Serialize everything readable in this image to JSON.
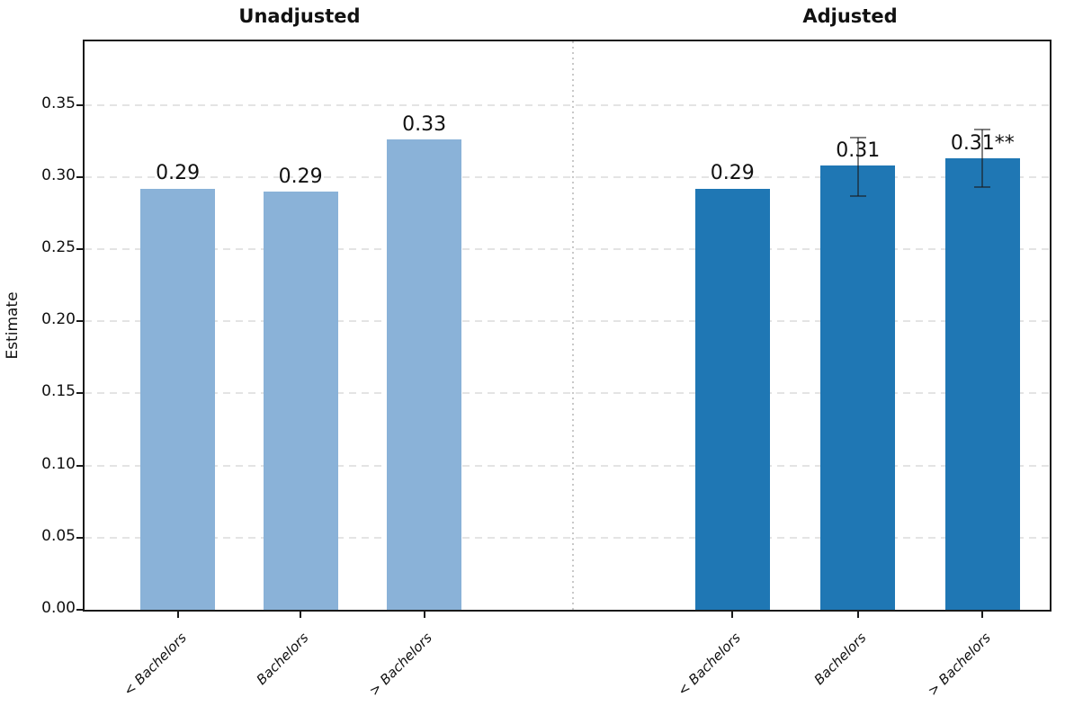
{
  "chart_data": {
    "type": "bar",
    "ylabel": "Estimate",
    "ylim": [
      0,
      0.394
    ],
    "ytick_values": [
      0.0,
      0.05,
      0.1,
      0.15,
      0.2,
      0.25,
      0.3,
      0.35
    ],
    "ytick_labels": [
      "0.00",
      "0.05",
      "0.10",
      "0.15",
      "0.20",
      "0.25",
      "0.30",
      "0.35"
    ],
    "grid": "horizontal dashed gridlines at each y tick",
    "legend": "none",
    "panels": [
      {
        "title": "Unadjusted",
        "bar_color": "#8ab2d8",
        "categories": [
          "< Bachelors",
          "Bachelors",
          "> Bachelors"
        ],
        "values": [
          0.292,
          0.29,
          0.326
        ],
        "bar_labels": [
          "0.29",
          "0.29",
          "0.33"
        ],
        "error_bars": [
          null,
          null,
          null
        ]
      },
      {
        "title": "Adjusted",
        "bar_color": "#1f77b4",
        "categories": [
          "< Bachelors",
          "Bachelors",
          "> Bachelors"
        ],
        "values": [
          0.292,
          0.308,
          0.313
        ],
        "bar_labels": [
          "0.29",
          "0.31",
          "0.31**"
        ],
        "error_bars": [
          null,
          {
            "lo": 0.287,
            "hi": 0.327
          },
          {
            "lo": 0.293,
            "hi": 0.333
          }
        ]
      }
    ],
    "style": {
      "grid_color": "#e4e4e4",
      "divider_color": "#c9c9c9",
      "axis_color": "#1a1a1a",
      "errorbar_color": "rgba(25,25,25,0.55)",
      "text_color": "#111111"
    }
  }
}
